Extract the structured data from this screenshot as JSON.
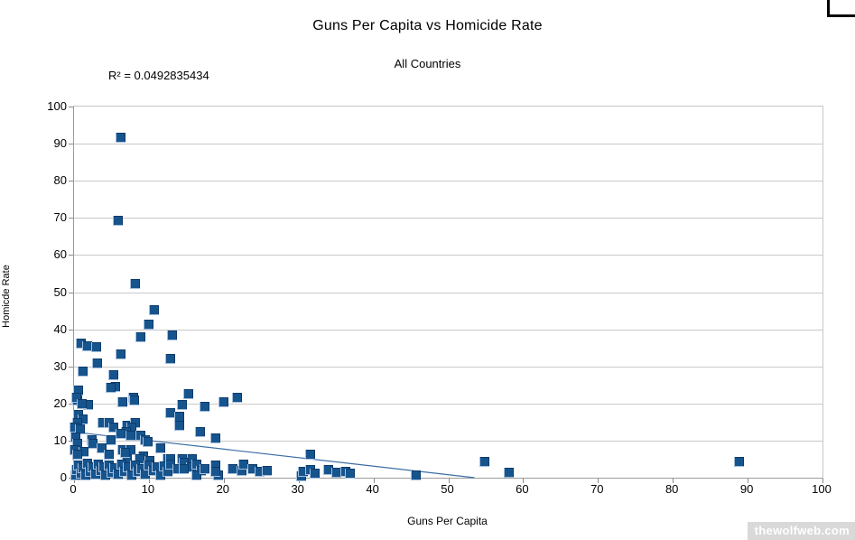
{
  "window": {
    "watermark": "thewolfweb.com"
  },
  "chart_data": {
    "type": "scatter",
    "title": "Guns Per Capita vs Homicide Rate",
    "subtitle": "All Countries",
    "r_squared_label": "R² = 0.0492835434",
    "xlabel": "Guns Per Capita",
    "ylabel": "Homicde Rate",
    "xlim": [
      0,
      100
    ],
    "ylim": [
      0,
      100
    ],
    "x_ticks": [
      0,
      10,
      20,
      30,
      40,
      50,
      60,
      70,
      80,
      90,
      100
    ],
    "y_ticks": [
      0,
      10,
      20,
      30,
      40,
      50,
      60,
      70,
      80,
      90,
      100
    ],
    "grid": "horizontal",
    "legend": "none",
    "marker": "square",
    "marker_color": "#16548e",
    "trendline": {
      "color": "#3a6ea5",
      "points": [
        [
          0,
          12.3
        ],
        [
          53.5,
          0
        ]
      ]
    },
    "points": [
      [
        6.2,
        91.6
      ],
      [
        5.8,
        69.2
      ],
      [
        8.1,
        52.3
      ],
      [
        10.7,
        45.1
      ],
      [
        9.9,
        41.2
      ],
      [
        8.9,
        37.8
      ],
      [
        13.1,
        38.4
      ],
      [
        0.9,
        36.2
      ],
      [
        1.8,
        35.4
      ],
      [
        3.0,
        35.2
      ],
      [
        6.2,
        33.2
      ],
      [
        12.9,
        31.9
      ],
      [
        3.1,
        30.8
      ],
      [
        1.1,
        28.5
      ],
      [
        5.3,
        27.5
      ],
      [
        5.5,
        24.5
      ],
      [
        0.5,
        23.4
      ],
      [
        4.9,
        24.3
      ],
      [
        7.9,
        21.5
      ],
      [
        15.2,
        22.6
      ],
      [
        21.8,
        21.5
      ],
      [
        20.0,
        20.3
      ],
      [
        17.4,
        19.0
      ],
      [
        14.4,
        19.5
      ],
      [
        0.4,
        20.7
      ],
      [
        1.9,
        19.5
      ],
      [
        6.5,
        20.2
      ],
      [
        8.0,
        20.9
      ],
      [
        0.3,
        21.5
      ],
      [
        1.0,
        19.9
      ],
      [
        0.5,
        17.0
      ],
      [
        12.8,
        17.3
      ],
      [
        14.1,
        16.5
      ],
      [
        1.1,
        15.8
      ],
      [
        0.4,
        14.6
      ],
      [
        3.8,
        14.8
      ],
      [
        4.7,
        14.6
      ],
      [
        7.1,
        14.1
      ],
      [
        8.1,
        14.6
      ],
      [
        14.1,
        14.1
      ],
      [
        5.3,
        13.6
      ],
      [
        7.7,
        13.6
      ],
      [
        0.1,
        13.6
      ],
      [
        0.8,
        12.9
      ],
      [
        6.9,
        12.2
      ],
      [
        6.2,
        11.7
      ],
      [
        7.5,
        11.2
      ],
      [
        8.9,
        11.2
      ],
      [
        16.8,
        12.4
      ],
      [
        18.9,
        10.5
      ],
      [
        0.2,
        10.9
      ],
      [
        9.5,
        10.0
      ],
      [
        2.3,
        10.0
      ],
      [
        4.9,
        10.0
      ],
      [
        9.8,
        9.7
      ],
      [
        0.4,
        9.2
      ],
      [
        2.5,
        9.2
      ],
      [
        11.5,
        8.0
      ],
      [
        3.7,
        8.0
      ],
      [
        31.6,
        6.1
      ],
      [
        0.1,
        7.5
      ],
      [
        1.3,
        7.0
      ],
      [
        6.4,
        7.3
      ],
      [
        7.5,
        7.5
      ],
      [
        4.7,
        6.1
      ],
      [
        0.4,
        6.3
      ],
      [
        9.2,
        5.6
      ],
      [
        7.1,
        5.1
      ],
      [
        8.7,
        5.1
      ],
      [
        10.1,
        4.4
      ],
      [
        12.5,
        4.9
      ],
      [
        14.4,
        5.1
      ],
      [
        15.8,
        5.1
      ],
      [
        6.8,
        6.8
      ],
      [
        12.9,
        5.1
      ],
      [
        0.2,
        0.5
      ],
      [
        0.3,
        2.0
      ],
      [
        0.6,
        3.2
      ],
      [
        0.9,
        1.2
      ],
      [
        1.2,
        2.6
      ],
      [
        1.5,
        0.6
      ],
      [
        1.8,
        3.8
      ],
      [
        2.1,
        1.6
      ],
      [
        2.5,
        2.9
      ],
      [
        2.8,
        0.9
      ],
      [
        3.2,
        3.5
      ],
      [
        3.5,
        1.9
      ],
      [
        3.9,
        2.8
      ],
      [
        4.2,
        0.5
      ],
      [
        4.6,
        3.4
      ],
      [
        5.0,
        1.4
      ],
      [
        5.4,
        2.5
      ],
      [
        5.8,
        0.8
      ],
      [
        6.3,
        3.6
      ],
      [
        6.7,
        1.7
      ],
      [
        7.2,
        2.9
      ],
      [
        7.6,
        0.6
      ],
      [
        8.1,
        3.4
      ],
      [
        8.5,
        1.5
      ],
      [
        9.0,
        2.3
      ],
      [
        9.5,
        0.9
      ],
      [
        10.0,
        3.2
      ],
      [
        10.5,
        1.8
      ],
      [
        11.0,
        2.7
      ],
      [
        11.5,
        0.7
      ],
      [
        12.0,
        3.0
      ],
      [
        12.5,
        1.5
      ],
      [
        12.9,
        3.6
      ],
      [
        13.8,
        2.4
      ],
      [
        14.7,
        3.9
      ],
      [
        15.6,
        2.7
      ],
      [
        16.4,
        3.6
      ],
      [
        17.0,
        1.9
      ],
      [
        16.4,
        0.7
      ],
      [
        18.9,
        3.2
      ],
      [
        19.2,
        0.7
      ],
      [
        21.2,
        2.4
      ],
      [
        22.4,
        1.9
      ],
      [
        22.6,
        3.6
      ],
      [
        23.8,
        2.4
      ],
      [
        24.8,
        1.5
      ],
      [
        25.8,
        1.9
      ],
      [
        14.7,
        2.4
      ],
      [
        17.4,
        2.4
      ],
      [
        18.9,
        1.5
      ],
      [
        30.3,
        0.3
      ],
      [
        30.6,
        1.7
      ],
      [
        31.5,
        2.0
      ],
      [
        32.1,
        1.2
      ],
      [
        33.9,
        2.0
      ],
      [
        35.1,
        1.3
      ],
      [
        36.2,
        1.6
      ],
      [
        36.8,
        1.2
      ],
      [
        45.7,
        0.7
      ],
      [
        54.8,
        4.2
      ],
      [
        58.1,
        1.3
      ],
      [
        88.8,
        4.2
      ]
    ]
  }
}
